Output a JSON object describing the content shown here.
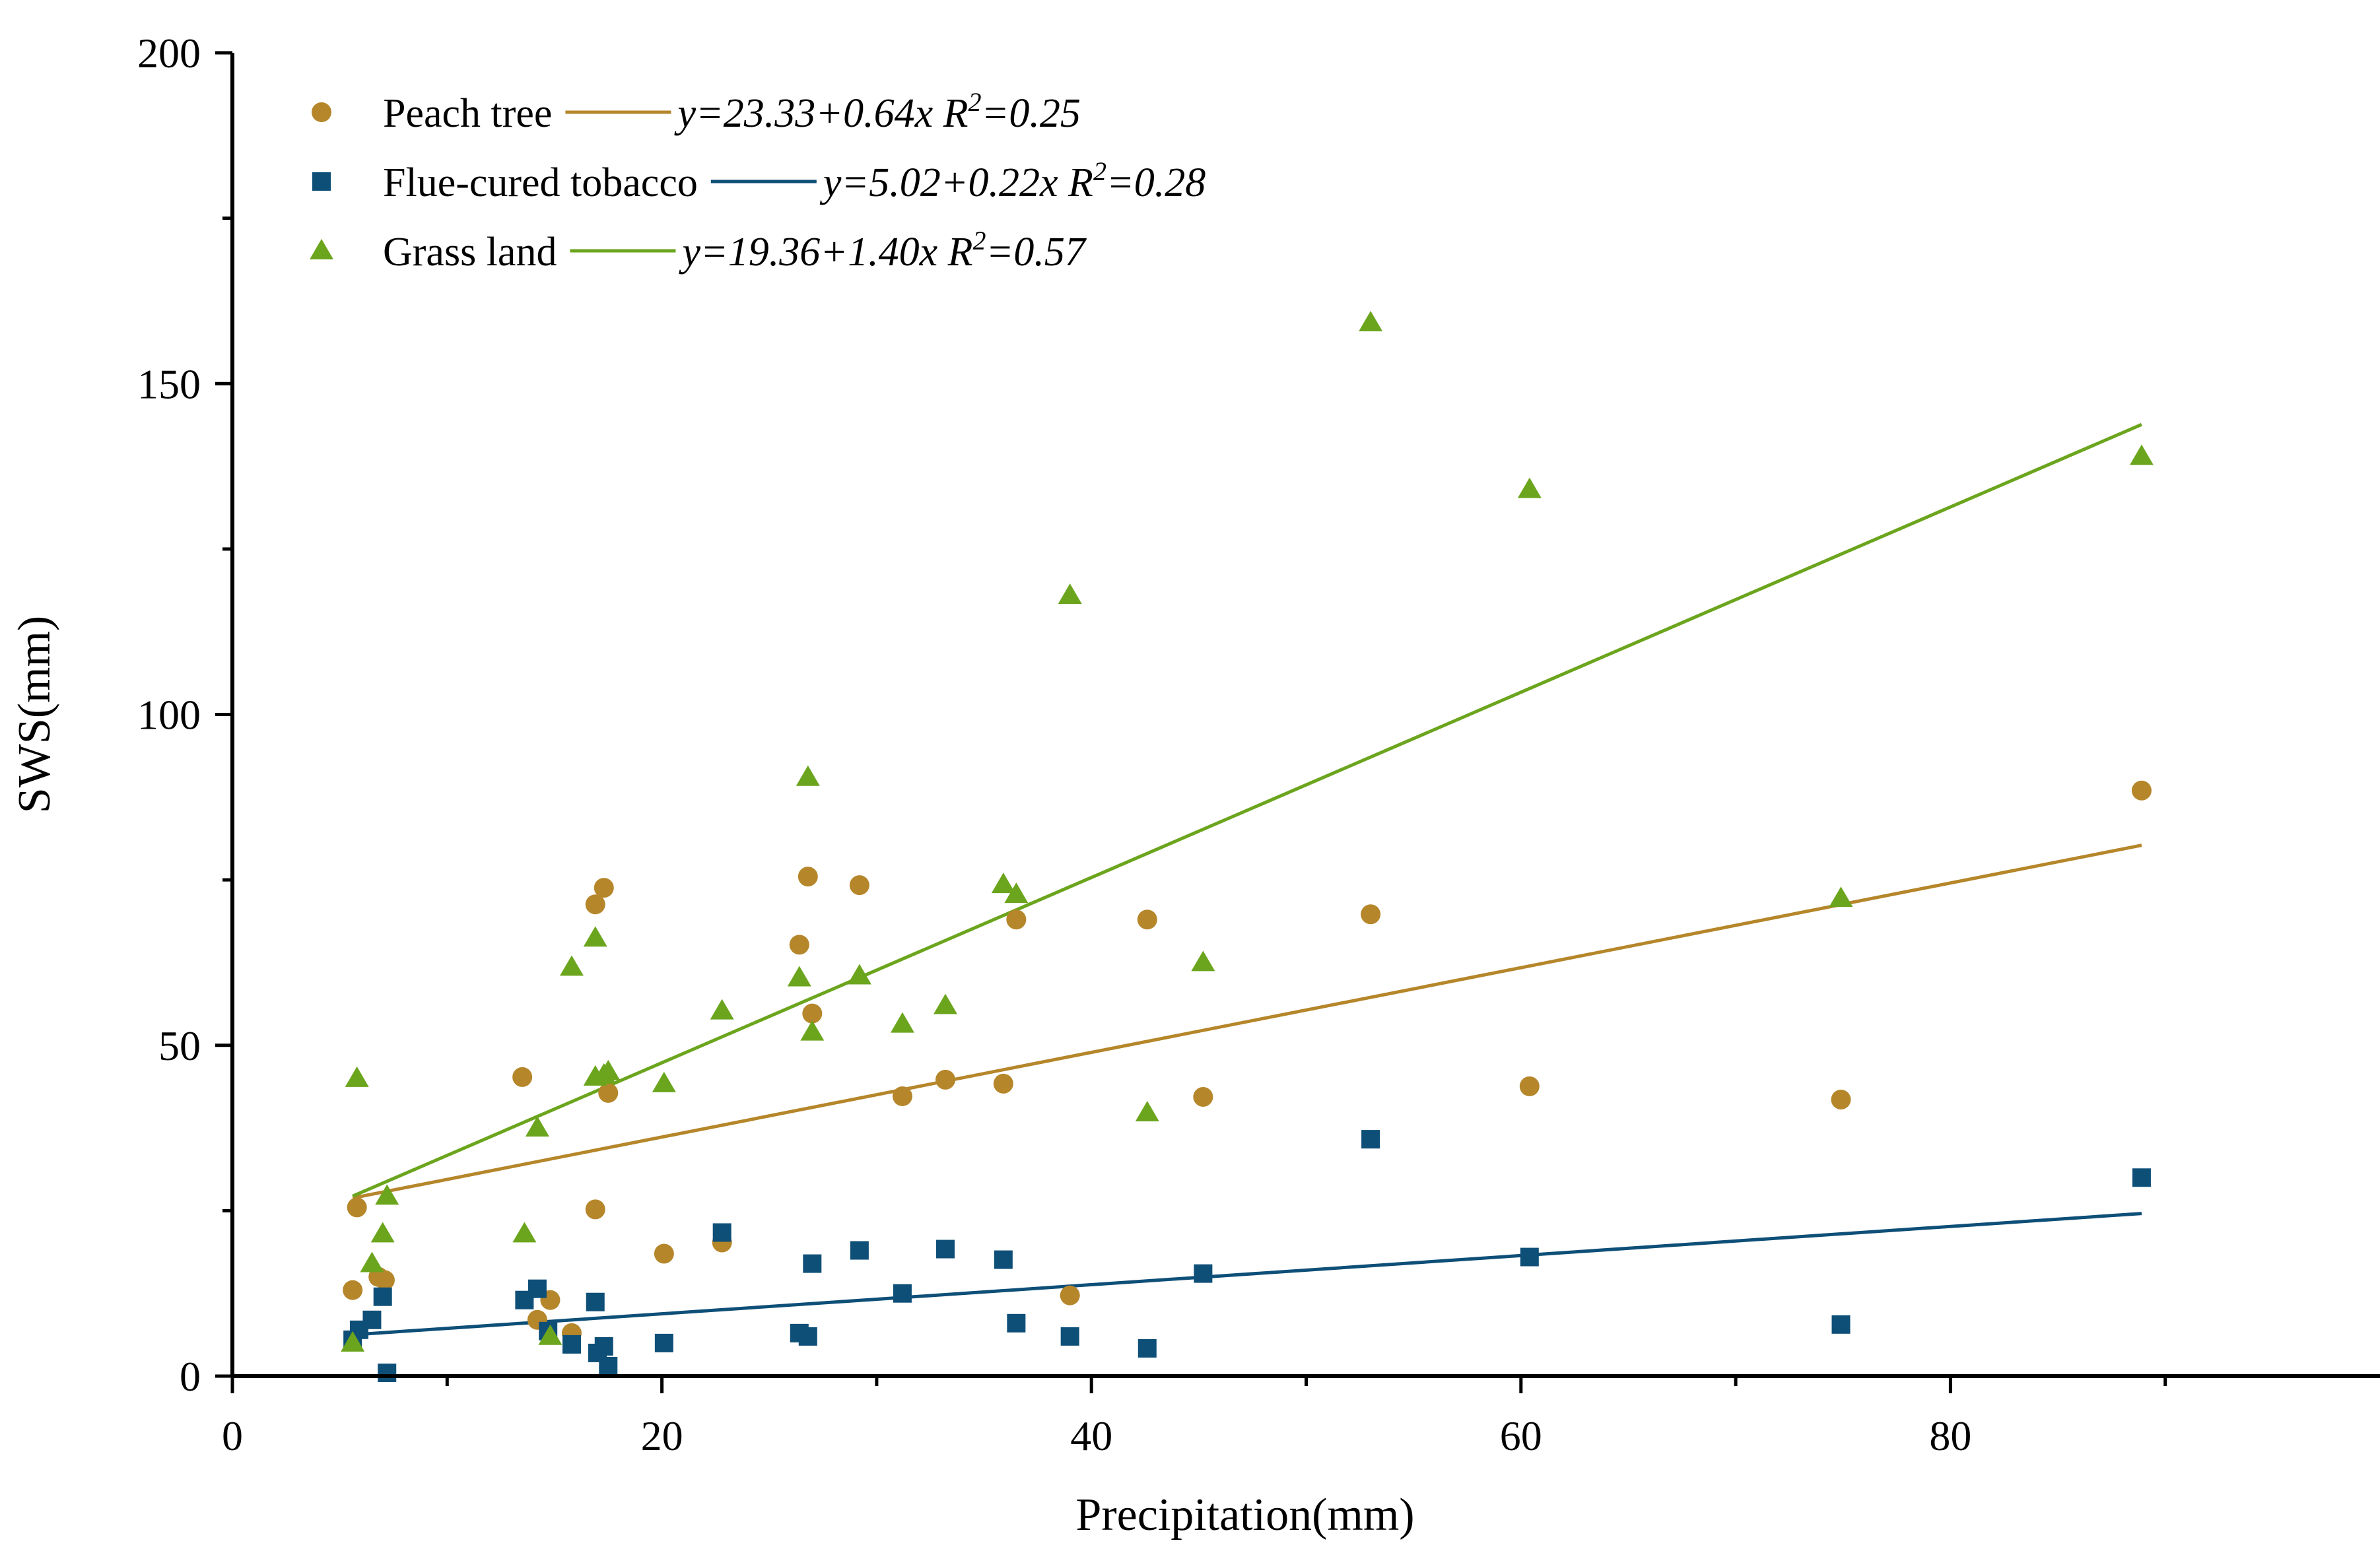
{
  "chart_data": {
    "type": "scatter",
    "title": "",
    "xlabel": "Precipitation(mm)",
    "ylabel": "SWS(mm)",
    "xlim": [
      0,
      100
    ],
    "ylim": [
      0,
      200
    ],
    "xticks": [
      0,
      20,
      40,
      60,
      80
    ],
    "yticks": [
      0,
      50,
      100,
      150,
      200
    ],
    "grid": false,
    "legend_position": "top-left",
    "series": [
      {
        "name": "Peach tree",
        "marker": "circle",
        "color": "#B5862A",
        "fit": {
          "intercept": 23.33,
          "slope": 0.64,
          "r2": 0.25,
          "equation": "y=23.33+0.64x",
          "r2_label": "R",
          "r2_sup": "2",
          "r2_value": "=0.25"
        },
        "x": [
          5.6,
          5.8,
          6.8,
          7.1,
          13.5,
          14.2,
          14.8,
          15.8,
          16.9,
          16.9,
          17.3,
          17.5,
          20.1,
          22.8,
          26.4,
          26.8,
          27.0,
          29.2,
          31.2,
          33.2,
          35.9,
          36.5,
          39.0,
          42.6,
          45.2,
          53.0,
          60.4,
          74.9,
          88.9
        ],
        "y": [
          13,
          25.5,
          15,
          14.5,
          45.2,
          8.5,
          11.5,
          6.5,
          25.2,
          71.3,
          73.8,
          42.8,
          18.5,
          20.2,
          65.2,
          75.5,
          54.8,
          74.2,
          42.3,
          44.8,
          44.2,
          69.0,
          12.2,
          69.0,
          42.2,
          69.8,
          43.8,
          41.8,
          88.5
        ]
      },
      {
        "name": "Flue-cured tobacco",
        "marker": "square",
        "color": "#0E4F78",
        "fit": {
          "intercept": 5.02,
          "slope": 0.22,
          "r2": 0.28,
          "equation": "y=5.02+0.22x",
          "r2_label": "R",
          "r2_sup": "2",
          "r2_value": "=0.28"
        },
        "x": [
          5.6,
          5.9,
          6.5,
          7.0,
          7.2,
          13.6,
          14.2,
          14.7,
          15.8,
          16.9,
          17.0,
          17.3,
          17.5,
          20.1,
          22.8,
          26.4,
          26.8,
          27.0,
          29.2,
          31.2,
          33.2,
          35.9,
          36.5,
          39.0,
          42.6,
          45.2,
          53.0,
          60.4,
          74.9,
          88.9
        ],
        "y": [
          5.5,
          7,
          8.5,
          12,
          0.5,
          11.5,
          13.2,
          6.8,
          4.8,
          11.2,
          3.5,
          4.5,
          1.5,
          5,
          21.7,
          6.5,
          6,
          17,
          19,
          12.5,
          19.2,
          17.6,
          8,
          6,
          4.2,
          15.5,
          35.8,
          18,
          7.8,
          30
        ]
      },
      {
        "name": "Grass land",
        "marker": "triangle",
        "color": "#6BA51D",
        "fit": {
          "intercept": 19.36,
          "slope": 1.4,
          "r2": 0.57,
          "equation": "y=19.36+1.40x",
          "r2_label": "R",
          "r2_sup": "2",
          "r2_value": "=0.57"
        },
        "x": [
          5.6,
          5.8,
          6.5,
          7.0,
          7.2,
          13.6,
          14.2,
          14.8,
          15.8,
          16.9,
          16.9,
          17.3,
          17.5,
          20.1,
          22.8,
          26.4,
          26.8,
          27.0,
          29.2,
          31.2,
          33.2,
          35.9,
          36.5,
          39.0,
          42.6,
          45.2,
          53.0,
          60.4,
          74.9,
          88.9
        ],
        "y": [
          5,
          45,
          17,
          21.5,
          27.2,
          21.5,
          37.5,
          6,
          61.8,
          66.2,
          45.2,
          45.5,
          46,
          44.2,
          55.2,
          60.2,
          90.5,
          52,
          60.5,
          53.2,
          56,
          74.3,
          72.8,
          118,
          39.8,
          62.5,
          159.2,
          134,
          72.2,
          139
        ]
      }
    ]
  }
}
